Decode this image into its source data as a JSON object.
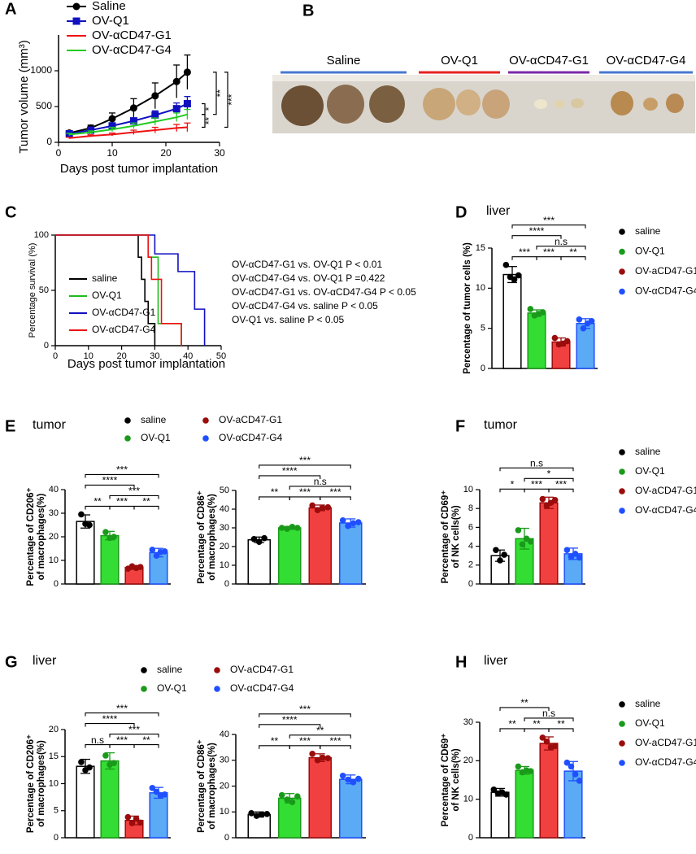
{
  "chart_data": [
    {
      "panel": "A",
      "type": "line",
      "xlabel": "Days post tumor implantation",
      "ylabel": "Tumor volume (mm³)",
      "xlim": [
        0,
        30
      ],
      "xticks": [
        0,
        10,
        20,
        30
      ],
      "ylim": [
        0,
        1500
      ],
      "yticks": [
        0,
        500,
        1000
      ],
      "series": [
        {
          "name": "Saline",
          "color": "#000000",
          "marker": "circle",
          "x": [
            2,
            6,
            10,
            14,
            18,
            22,
            24
          ],
          "values": [
            130,
            200,
            330,
            480,
            650,
            850,
            980
          ],
          "errors": [
            20,
            40,
            80,
            130,
            180,
            230,
            240
          ]
        },
        {
          "name": "OV-Q1",
          "color": "#1010c0",
          "marker": "square",
          "x": [
            2,
            6,
            10,
            14,
            18,
            22,
            24
          ],
          "values": [
            120,
            170,
            230,
            300,
            380,
            470,
            540
          ],
          "errors": [
            15,
            20,
            30,
            40,
            60,
            80,
            100
          ]
        },
        {
          "name": "OV-αCD47-G1",
          "color": "#ee1111",
          "marker": "triangle-up",
          "x": [
            2,
            6,
            10,
            14,
            18,
            22,
            24
          ],
          "values": [
            60,
            90,
            110,
            140,
            170,
            200,
            210
          ],
          "errors": [
            10,
            15,
            20,
            30,
            40,
            50,
            60
          ]
        },
        {
          "name": "OV-αCD47-G4",
          "color": "#22cc22",
          "marker": "triangle-down",
          "x": [
            2,
            6,
            10,
            14,
            18,
            22,
            24
          ],
          "values": [
            110,
            140,
            180,
            230,
            290,
            350,
            390
          ],
          "errors": [
            15,
            20,
            30,
            40,
            50,
            60,
            70
          ]
        }
      ],
      "comparisons": [
        {
          "pair": [
            0,
            2
          ],
          "label": "***"
        },
        {
          "pair": [
            0,
            3
          ],
          "label": "**"
        },
        {
          "pair": [
            1,
            3
          ],
          "label": "*"
        },
        {
          "pair": [
            3,
            2
          ],
          "label": "**"
        }
      ]
    },
    {
      "panel": "C",
      "type": "survival",
      "xlabel": "Days post tumor implantation",
      "ylabel": "Percentage survival (%)",
      "xlim": [
        0,
        50
      ],
      "xticks": [
        0,
        10,
        20,
        30,
        40,
        50
      ],
      "ylim": [
        0,
        100
      ],
      "yticks": [
        0,
        50,
        100
      ],
      "series": [
        {
          "name": "saline",
          "color": "#000000",
          "x": [
            0,
            25,
            25,
            26,
            26,
            27,
            27,
            28,
            28,
            30,
            30
          ],
          "values": [
            100,
            100,
            80,
            80,
            60,
            60,
            40,
            40,
            20,
            20,
            0
          ]
        },
        {
          "name": "OV-Q1",
          "color": "#22bb22",
          "x": [
            0,
            28,
            28,
            31,
            31,
            38,
            38
          ],
          "values": [
            100,
            100,
            80,
            80,
            20,
            20,
            0
          ]
        },
        {
          "name": "OV-αCD47-G1",
          "color": "#1010c0",
          "x": [
            0,
            30,
            30,
            37,
            37,
            42,
            42,
            45,
            45
          ],
          "values": [
            100,
            100,
            83,
            83,
            67,
            67,
            33,
            33,
            0
          ]
        },
        {
          "name": "OV-αCD47-G4",
          "color": "#ee1111",
          "x": [
            0,
            28,
            28,
            29,
            29,
            32,
            32,
            38,
            38
          ],
          "values": [
            100,
            100,
            80,
            80,
            60,
            60,
            20,
            20,
            0
          ]
        }
      ],
      "annotations": [
        "OV-αCD47-G1 vs. OV-Q1 P < 0.01",
        "OV-αCD47-G4 vs. OV-Q1 P =0.422",
        "OV-αCD47-G1 vs. OV-αCD47-G4 P < 0.05",
        "OV-αCD47-G4 vs. saline P < 0.05",
        "OV-Q1  vs. saline P < 0.05"
      ]
    },
    {
      "panel": "D",
      "title": "liver",
      "type": "bar",
      "ylabel": "Percentage of tumor cells (%)",
      "ylim": [
        0,
        15
      ],
      "yticks": [
        0,
        5,
        10,
        15
      ],
      "legend": "right",
      "series": [
        {
          "name": "saline",
          "color": "#ffffff",
          "point_color": "#000000",
          "mean": 11.7,
          "error": 1.0,
          "values": [
            12.9,
            11.4,
            11.1,
            11.6
          ]
        },
        {
          "name": "OV-Q1",
          "color": "#33dd33",
          "point_color": "#1a9a1a",
          "mean": 6.9,
          "error": 0.4,
          "values": [
            7.4,
            6.6,
            6.8,
            7.0
          ]
        },
        {
          "name": "OV-aCD47-G1",
          "color": "#f04040",
          "point_color": "#9b0c0c",
          "mean": 3.3,
          "error": 0.5,
          "values": [
            3.8,
            3.0,
            3.1,
            3.4
          ]
        },
        {
          "name": "OV-αCD47-G4",
          "color": "#5aaaf5",
          "point_color": "#1f4fff",
          "mean": 5.6,
          "error": 0.6,
          "values": [
            6.1,
            5.0,
            5.6,
            5.9
          ]
        }
      ],
      "comparisons": [
        {
          "pair": [
            0,
            3
          ],
          "label": "***"
        },
        {
          "pair": [
            0,
            2
          ],
          "label": "****"
        },
        {
          "pair": [
            0,
            1
          ],
          "label": "***"
        },
        {
          "pair": [
            1,
            3
          ],
          "label": "n.s"
        },
        {
          "pair": [
            1,
            2
          ],
          "label": "***"
        },
        {
          "pair": [
            2,
            3
          ],
          "label": "**"
        }
      ]
    },
    {
      "panel": "E",
      "title": "tumor",
      "type": "bar",
      "ylabel": [
        "Percentage of CD206⁺",
        "of macrophages(%)"
      ],
      "ylim": [
        0,
        40
      ],
      "yticks": [
        0,
        10,
        20,
        30,
        40
      ],
      "legend": "top",
      "series": [
        {
          "name": "saline",
          "color": "#ffffff",
          "point_color": "#000000",
          "mean": 26.5,
          "error": 2.8,
          "values": [
            29.5,
            25.5,
            25
          ]
        },
        {
          "name": "OV-Q1",
          "color": "#33dd33",
          "point_color": "#1a9a1a",
          "mean": 20.5,
          "error": 1.8,
          "values": [
            22,
            19.5,
            20
          ]
        },
        {
          "name": "OV-aCD47-G1",
          "color": "#f04040",
          "point_color": "#9b0c0c",
          "mean": 7,
          "error": 0.8,
          "values": [
            6.5,
            7.5,
            6.8,
            7.2
          ]
        },
        {
          "name": "OV-αCD47-G4",
          "color": "#5aaaf5",
          "point_color": "#1f4fff",
          "mean": 13.3,
          "error": 1.8,
          "values": [
            14.5,
            12,
            13.5,
            13.8
          ]
        }
      ],
      "comparisons": [
        {
          "pair": [
            0,
            3
          ],
          "label": "***"
        },
        {
          "pair": [
            0,
            2
          ],
          "label": "****"
        },
        {
          "pair": [
            0,
            1
          ],
          "label": "**"
        },
        {
          "pair": [
            1,
            3
          ],
          "label": "***"
        },
        {
          "pair": [
            1,
            2
          ],
          "label": "***"
        },
        {
          "pair": [
            2,
            3
          ],
          "label": "**"
        }
      ]
    },
    {
      "type": "bar",
      "ylabel": [
        "Percentage of CD86⁺",
        "of macrophages(%)"
      ],
      "ylim": [
        0,
        50
      ],
      "yticks": [
        0,
        10,
        20,
        30,
        40,
        50
      ],
      "series": [
        {
          "color": "#ffffff",
          "point_color": "#000000",
          "mean": 23.6,
          "error": 1.5,
          "values": [
            24,
            22.5,
            24.5
          ]
        },
        {
          "color": "#33dd33",
          "point_color": "#1a9a1a",
          "mean": 30,
          "error": 0.8,
          "values": [
            30,
            29.5,
            30.5,
            30
          ]
        },
        {
          "color": "#f04040",
          "point_color": "#9b0c0c",
          "mean": 40.7,
          "error": 1.5,
          "values": [
            42,
            39.5,
            40.5,
            41
          ]
        },
        {
          "color": "#5aaaf5",
          "point_color": "#1f4fff",
          "mean": 32.6,
          "error": 2.2,
          "values": [
            34,
            31,
            32.5,
            33
          ]
        }
      ],
      "comparisons": [
        {
          "pair": [
            0,
            3
          ],
          "label": "***"
        },
        {
          "pair": [
            0,
            2
          ],
          "label": "****"
        },
        {
          "pair": [
            1,
            3
          ],
          "label": "n.s"
        },
        {
          "pair": [
            0,
            1
          ],
          "label": "**"
        },
        {
          "pair": [
            1,
            2
          ],
          "label": "***"
        },
        {
          "pair": [
            2,
            3
          ],
          "label": "***"
        }
      ]
    },
    {
      "panel": "F",
      "title": "tumor",
      "type": "bar",
      "ylabel": [
        "Percentage of CD69⁺",
        "of NK cells(%)"
      ],
      "ylim": [
        0,
        10
      ],
      "yticks": [
        0,
        2,
        4,
        6,
        8,
        10
      ],
      "legend": "right",
      "series": [
        {
          "name": "saline",
          "color": "#ffffff",
          "point_color": "#000000",
          "mean": 3.0,
          "error": 0.6,
          "values": [
            3.6,
            2.5,
            3.1
          ]
        },
        {
          "name": "OV-Q1",
          "color": "#33dd33",
          "point_color": "#1a9a1a",
          "mean": 4.8,
          "error": 1.1,
          "values": [
            5.7,
            4.2,
            4.8,
            4.5
          ]
        },
        {
          "name": "OV-aCD47-G1",
          "color": "#f04040",
          "point_color": "#9b0c0c",
          "mean": 8.6,
          "error": 0.6,
          "values": [
            9.0,
            8.3,
            8.6,
            8.9
          ]
        },
        {
          "name": "OV-αCD47-G4",
          "color": "#5aaaf5",
          "point_color": "#1f4fff",
          "mean": 3.2,
          "error": 0.6,
          "values": [
            3.6,
            2.9,
            3.2,
            2.8
          ]
        }
      ],
      "comparisons": [
        {
          "pair": [
            0,
            3
          ],
          "label": "n.s"
        },
        {
          "pair": [
            1,
            3
          ],
          "label": "*"
        },
        {
          "pair": [
            0,
            1
          ],
          "label": "*"
        },
        {
          "pair": [
            1,
            2
          ],
          "label": "***"
        },
        {
          "pair": [
            2,
            3
          ],
          "label": "***"
        }
      ]
    },
    {
      "panel": "G",
      "title": "liver",
      "type": "bar",
      "ylabel": [
        "Percentage of CD206⁺",
        "of macrophages(%)"
      ],
      "ylim": [
        0,
        20
      ],
      "yticks": [
        0,
        5,
        10,
        15,
        20
      ],
      "legend": "top",
      "series": [
        {
          "name": "saline",
          "color": "#ffffff",
          "point_color": "#000000",
          "mean": 13.2,
          "error": 1.3,
          "values": [
            14,
            12.5,
            13
          ]
        },
        {
          "name": "OV-Q1",
          "color": "#33dd33",
          "point_color": "#1a9a1a",
          "mean": 14.2,
          "error": 1.5,
          "values": [
            15.2,
            13.5,
            13.8
          ]
        },
        {
          "name": "OV-aCD47-G1",
          "color": "#f04040",
          "point_color": "#9b0c0c",
          "mean": 3.2,
          "error": 0.8,
          "values": [
            3.8,
            2.7,
            3.5,
            2.8
          ]
        },
        {
          "name": "OV-αCD47-G4",
          "color": "#5aaaf5",
          "point_color": "#1f4fff",
          "mean": 8.3,
          "error": 1.0,
          "values": [
            9.2,
            8.5,
            7.8,
            8.0
          ]
        }
      ],
      "comparisons": [
        {
          "pair": [
            0,
            3
          ],
          "label": "***"
        },
        {
          "pair": [
            0,
            2
          ],
          "label": "****"
        },
        {
          "pair": [
            0,
            1
          ],
          "label": "n.s"
        },
        {
          "pair": [
            1,
            3
          ],
          "label": "***"
        },
        {
          "pair": [
            1,
            2
          ],
          "label": "***"
        },
        {
          "pair": [
            2,
            3
          ],
          "label": "**"
        }
      ]
    },
    {
      "type": "bar",
      "ylabel": [
        "Percentage of CD86⁺",
        "of macrophages(%)"
      ],
      "ylim": [
        0,
        40
      ],
      "yticks": [
        0,
        10,
        20,
        30,
        40
      ],
      "series": [
        {
          "color": "#ffffff",
          "point_color": "#000000",
          "mean": 9,
          "error": 1.0,
          "values": [
            9.5,
            8.5,
            9,
            9.2
          ]
        },
        {
          "color": "#33dd33",
          "point_color": "#1a9a1a",
          "mean": 15.3,
          "error": 1.8,
          "values": [
            16.5,
            14.8,
            13.8,
            16
          ]
        },
        {
          "color": "#f04040",
          "point_color": "#9b0c0c",
          "mean": 31,
          "error": 1.5,
          "values": [
            32.5,
            30,
            31,
            30.8
          ]
        },
        {
          "color": "#5aaaf5",
          "point_color": "#1f4fff",
          "mean": 22.6,
          "error": 1.7,
          "values": [
            24,
            22.5,
            21.5,
            22.8
          ]
        }
      ],
      "comparisons": [
        {
          "pair": [
            0,
            3
          ],
          "label": "***"
        },
        {
          "pair": [
            0,
            2
          ],
          "label": "****"
        },
        {
          "pair": [
            1,
            3
          ],
          "label": "**"
        },
        {
          "pair": [
            0,
            1
          ],
          "label": "**"
        },
        {
          "pair": [
            1,
            2
          ],
          "label": "***"
        },
        {
          "pair": [
            2,
            3
          ],
          "label": "***"
        }
      ]
    },
    {
      "panel": "H",
      "title": "liver",
      "type": "bar",
      "ylabel": [
        "Percentage of CD69⁺",
        "of NK cells(%)"
      ],
      "ylim": [
        0,
        30
      ],
      "yticks": [
        0,
        10,
        20,
        30
      ],
      "legend": "right",
      "series": [
        {
          "name": "saline",
          "color": "#ffffff",
          "point_color": "#000000",
          "mean": 11.8,
          "error": 1.0,
          "values": [
            12.5,
            11.5,
            11.8,
            11.2
          ]
        },
        {
          "name": "OV-Q1",
          "color": "#33dd33",
          "point_color": "#1a9a1a",
          "mean": 17.5,
          "error": 1.0,
          "values": [
            18.5,
            17,
            17.5,
            17.3
          ]
        },
        {
          "name": "OV-aCD47-G1",
          "color": "#f04040",
          "point_color": "#9b0c0c",
          "mean": 24.5,
          "error": 1.7,
          "values": [
            26,
            25,
            23.5,
            23.8
          ]
        },
        {
          "name": "OV-αCD47-G4",
          "color": "#5aaaf5",
          "point_color": "#1f4fff",
          "mean": 17.3,
          "error": 2.5,
          "values": [
            19.5,
            18.5,
            16.5,
            14.8
          ]
        }
      ],
      "comparisons": [
        {
          "pair": [
            0,
            2
          ],
          "label": "**"
        },
        {
          "pair": [
            1,
            3
          ],
          "label": "n.s"
        },
        {
          "pair": [
            1,
            2
          ],
          "label": "**"
        },
        {
          "pair": [
            2,
            3
          ],
          "label": "**"
        },
        {
          "pair": [
            0,
            1
          ],
          "label": "**"
        }
      ]
    }
  ],
  "photo": {
    "panel": "B",
    "groups": [
      "Saline",
      "OV-Q1",
      "OV-αCD47-G1",
      "OV-αCD47-G4"
    ],
    "colors": [
      "#4a78d0",
      "#e52222",
      "#7a2aa8",
      "#4a78d0"
    ]
  }
}
